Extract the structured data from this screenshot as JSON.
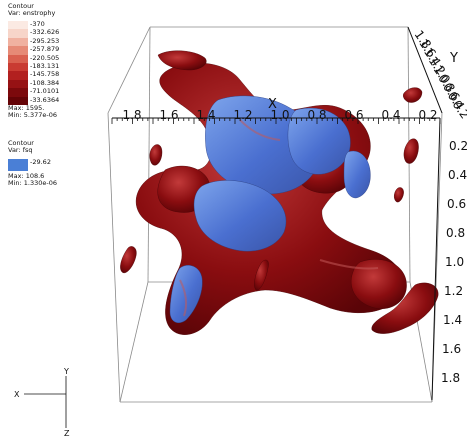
{
  "legend_enstrophy": {
    "title": "Contour",
    "var": "Var: enstrophy",
    "levels": [
      {
        "label": "370",
        "color": "#fbeae3"
      },
      {
        "label": "332.626",
        "color": "#f7d5c9"
      },
      {
        "label": "295.253",
        "color": "#f0b1a0"
      },
      {
        "label": "257.879",
        "color": "#e68a76"
      },
      {
        "label": "220.505",
        "color": "#d9604f"
      },
      {
        "label": "183.131",
        "color": "#c93b32"
      },
      {
        "label": "145.758",
        "color": "#b2201f"
      },
      {
        "label": "108.384",
        "color": "#961214"
      },
      {
        "label": "71.0101",
        "color": "#7c090c"
      },
      {
        "label": "33.6364",
        "color": "#640306"
      }
    ],
    "max": "Max: 1595.",
    "min": "Min: 5.377e-06"
  },
  "legend_fsq": {
    "title": "Contour",
    "var": "Var: fsq",
    "levels": [
      {
        "label": "29.62",
        "color": "#4a7fd6"
      }
    ],
    "max": "Max: 108.6",
    "min": "Min: 1.330e-06"
  },
  "axes": {
    "x_label": "X",
    "y_label": "Y",
    "x_ticks": [
      "1.8",
      "1.6",
      "1.4",
      "1.2",
      "1.0",
      "0.8",
      "0.6",
      "0.4",
      "0.2"
    ],
    "y_ticks": [
      "1.8",
      "1.6",
      "1.4",
      "1.2",
      "1.0",
      "0.8",
      "0.6",
      "0.4",
      "0.2"
    ],
    "z_ticks": [
      "0.2",
      "0.4",
      "0.6",
      "0.8",
      "1.0",
      "1.2",
      "1.4",
      "1.6",
      "1.8"
    ]
  },
  "triad": {
    "x": "X",
    "y": "Y",
    "z": "Z"
  },
  "colors": {
    "enstrophy_surface": "#8a0d10",
    "enstrophy_highlight": "#c23a3a",
    "fsq_surface": "#4a6fd0",
    "fsq_highlight": "#7ea5ec"
  }
}
